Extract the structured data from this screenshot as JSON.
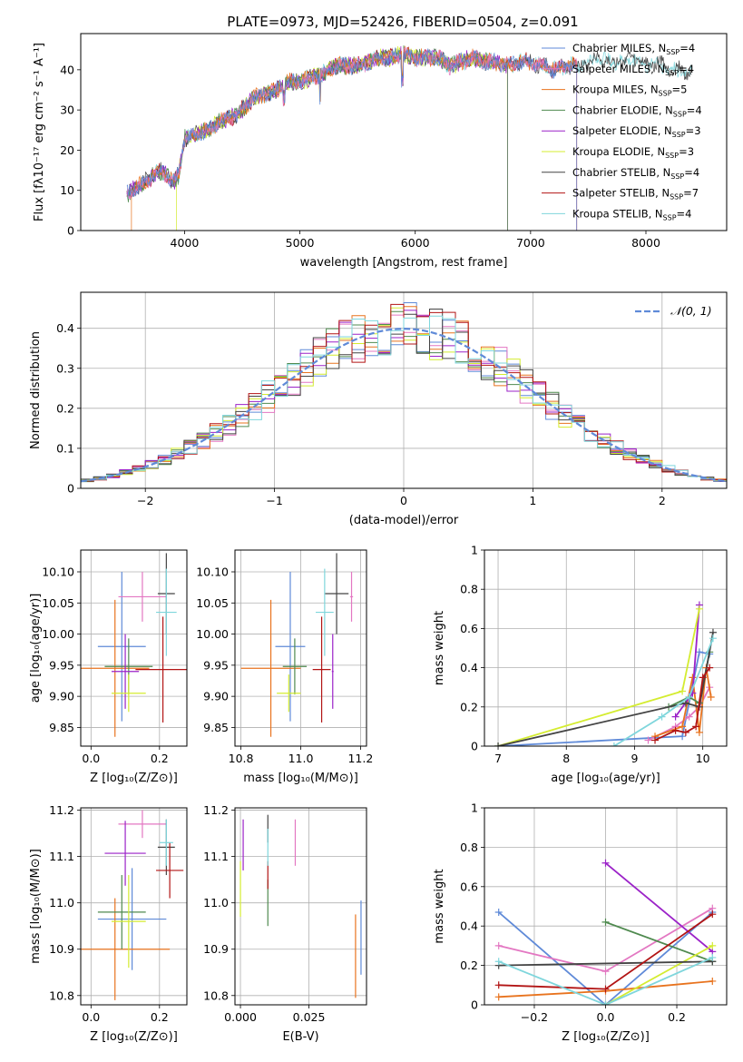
{
  "title": "PLATE=0973, MJD=52426, FIBERID=0504, z=0.091",
  "colors": {
    "Chabrier MILES": "#5f8ad8",
    "Salpeter MILES": "#e377c2",
    "Kroupa MILES": "#e8731e",
    "Chabrier ELODIE": "#4f8a4f",
    "Salpeter ELODIE": "#9b22c8",
    "Kroupa ELODIE": "#d4ec30",
    "Chabrier STELIB": "#444444",
    "Salpeter STELIB": "#b21414",
    "Kroupa STELIB": "#7fd6dc",
    "normal": "#5f8ad8"
  },
  "chart_data": [
    {
      "id": "spectrum",
      "type": "line",
      "title": "PLATE=0973, MJD=52426, FIBERID=0504, z=0.091",
      "xlabel": "wavelength [Angstrom, rest frame]",
      "ylabel": "Flux [fλ10⁻¹⁷ erg cm⁻² s⁻¹ A⁻¹]",
      "xlim": [
        3100,
        8700
      ],
      "ylim": [
        0,
        49
      ],
      "xticks": [
        4000,
        5000,
        6000,
        7000,
        8000
      ],
      "yticks": [
        0,
        10,
        20,
        30,
        40
      ],
      "grid": false,
      "legend_position": "right",
      "legend": [
        {
          "name": "Chabrier MILES",
          "label": "Chabrier MILES, N",
          "sub": "SSP",
          "suffix": "=4"
        },
        {
          "name": "Salpeter MILES",
          "label": "Salpeter MILES, N",
          "sub": "SSP",
          "suffix": "=4"
        },
        {
          "name": "Kroupa MILES",
          "label": "Kroupa MILES, N",
          "sub": "SSP",
          "suffix": "=5"
        },
        {
          "name": "Chabrier ELODIE",
          "label": "Chabrier ELODIE, N",
          "sub": "SSP",
          "suffix": "=4"
        },
        {
          "name": "Salpeter ELODIE",
          "label": "Salpeter ELODIE, N",
          "sub": "SSP",
          "suffix": "=3"
        },
        {
          "name": "Kroupa ELODIE",
          "label": "Kroupa ELODIE, N",
          "sub": "SSP",
          "suffix": "=3"
        },
        {
          "name": "Chabrier STELIB",
          "label": "Chabrier STELIB, N",
          "sub": "SSP",
          "suffix": "=4"
        },
        {
          "name": "Salpeter STELIB",
          "label": "Salpeter STELIB, N",
          "sub": "SSP",
          "suffix": "=7"
        },
        {
          "name": "Kroupa STELIB",
          "label": "Kroupa STELIB, N",
          "sub": "SSP",
          "suffix": "=4"
        }
      ],
      "continuum": {
        "x": [
          3500,
          3600,
          3700,
          3800,
          3900,
          3950,
          4000,
          4100,
          4200,
          4300,
          4400,
          4500,
          4600,
          4700,
          4800,
          4900,
          5000,
          5100,
          5200,
          5300,
          5400,
          5500,
          5600,
          5700,
          5800,
          5900,
          6000,
          6100,
          6200,
          6300,
          6400,
          6500,
          6600,
          6700,
          6800,
          6900,
          7000,
          7100,
          7200,
          7300,
          7400,
          7500,
          7600,
          7700,
          7800,
          7900,
          8000,
          8100,
          8200,
          8300,
          8400
        ],
        "y": [
          9,
          11,
          13,
          15,
          12,
          14,
          23,
          24,
          25,
          27,
          28,
          30,
          33,
          34,
          35,
          37,
          37,
          38,
          39,
          41,
          41,
          41,
          42,
          43,
          43,
          44,
          43,
          43,
          43,
          41,
          42,
          43,
          42,
          42,
          41,
          42,
          42,
          41,
          40,
          41,
          41,
          42,
          43,
          42,
          42,
          43,
          41,
          42,
          40,
          40,
          39
        ]
      },
      "series_ranges": [
        {
          "name": "Chabrier MILES",
          "x": [
            3500,
            7400
          ]
        },
        {
          "name": "Salpeter MILES",
          "x": [
            3500,
            7400
          ]
        },
        {
          "name": "Kroupa MILES",
          "x": [
            3540,
            7400
          ]
        },
        {
          "name": "Chabrier ELODIE",
          "x": [
            3500,
            6800
          ]
        },
        {
          "name": "Salpeter ELODIE",
          "x": [
            3500,
            6800
          ]
        },
        {
          "name": "Kroupa ELODIE",
          "x": [
            3930,
            6800
          ]
        },
        {
          "name": "Chabrier STELIB",
          "x": [
            3500,
            8400
          ]
        },
        {
          "name": "Salpeter STELIB",
          "x": [
            3500,
            7400
          ]
        },
        {
          "name": "Kroupa STELIB",
          "x": [
            3500,
            8400
          ]
        }
      ]
    },
    {
      "id": "residuals",
      "type": "line",
      "xlabel": "(data-model)/error",
      "ylabel": "Normed distribution",
      "xlim": [
        -2.5,
        2.5
      ],
      "ylim": [
        0,
        0.49
      ],
      "xticks": [
        -2,
        -1,
        0,
        1,
        2
      ],
      "yticks": [
        0.0,
        0.1,
        0.2,
        0.3,
        0.4
      ],
      "grid": true,
      "legend_position": "top-right",
      "normal_label": "𝒩(0, 1)",
      "bin_width": 0.1
    },
    {
      "id": "age_vs_Z",
      "type": "scatter",
      "xlabel": "Z [log₁₀(Z/Z⊙)]",
      "ylabel": "age  [log₁₀(age/yr)]",
      "xlim": [
        -0.03,
        0.28
      ],
      "ylim": [
        9.82,
        10.135
      ],
      "xticks": [
        0.0,
        0.2
      ],
      "xticklabels": [
        "0.0",
        "0.2"
      ],
      "yticks": [
        9.85,
        9.9,
        9.95,
        10.0,
        10.05,
        10.1
      ],
      "yticklabels": [
        "9.85",
        "9.90",
        "9.95",
        "10.00",
        "10.05",
        "10.10"
      ],
      "grid": true,
      "points": [
        {
          "name": "Chabrier MILES",
          "x": 0.09,
          "xerr": 0.07,
          "y": 9.98,
          "yerr": 0.12
        },
        {
          "name": "Salpeter MILES",
          "x": 0.15,
          "xerr": 0.07,
          "y": 10.06,
          "yerr": 0.04
        },
        {
          "name": "Kroupa MILES",
          "x": 0.07,
          "xerr": 0.1,
          "y": 9.945,
          "yerr": 0.11
        },
        {
          "name": "Chabrier ELODIE",
          "x": 0.11,
          "xerr": 0.07,
          "y": 9.948,
          "yerr": 0.045
        },
        {
          "name": "Salpeter ELODIE",
          "x": 0.1,
          "xerr": 0.04,
          "y": 9.94,
          "yerr": 0.06
        },
        {
          "name": "Kroupa ELODIE",
          "x": 0.11,
          "xerr": 0.05,
          "y": 9.905,
          "yerr": 0.03
        },
        {
          "name": "Chabrier STELIB",
          "x": 0.22,
          "xerr": 0.025,
          "y": 10.065,
          "yerr": 0.065
        },
        {
          "name": "Salpeter STELIB",
          "x": 0.21,
          "xerr": 0.08,
          "y": 9.943,
          "yerr": 0.085
        },
        {
          "name": "Kroupa STELIB",
          "x": 0.22,
          "xerr": 0.03,
          "y": 10.035,
          "yerr": 0.07
        }
      ]
    },
    {
      "id": "age_vs_mass",
      "type": "scatter",
      "xlabel": "mass [log₁₀(M/M⊙)]",
      "ylabel": "",
      "xlim": [
        10.78,
        11.22
      ],
      "ylim": [
        9.82,
        10.135
      ],
      "xticks": [
        10.8,
        11.0,
        11.2
      ],
      "xticklabels": [
        "10.8",
        "11.0",
        "11.2"
      ],
      "yticks": [
        9.85,
        9.9,
        9.95,
        10.0,
        10.05,
        10.1
      ],
      "yticklabels": [
        "9.85",
        "9.90",
        "9.95",
        "10.00",
        "10.05",
        "10.10"
      ],
      "grid": true,
      "points": [
        {
          "name": "Chabrier MILES",
          "x": 10.965,
          "xerr": 0.05,
          "y": 9.98,
          "yerr": 0.12
        },
        {
          "name": "Salpeter MILES",
          "x": 11.17,
          "xerr": 0.005,
          "y": 10.06,
          "yerr": 0.04
        },
        {
          "name": "Kroupa MILES",
          "x": 10.9,
          "xerr": 0.1,
          "y": 9.945,
          "yerr": 0.11
        },
        {
          "name": "Chabrier ELODIE",
          "x": 10.98,
          "xerr": 0.04,
          "y": 9.948,
          "yerr": 0.045
        },
        {
          "name": "Salpeter ELODIE",
          "x": 11.107,
          "xerr": 0.003,
          "y": 9.94,
          "yerr": 0.06
        },
        {
          "name": "Kroupa ELODIE",
          "x": 10.96,
          "xerr": 0.04,
          "y": 9.905,
          "yerr": 0.03
        },
        {
          "name": "Chabrier STELIB",
          "x": 11.12,
          "xerr": 0.04,
          "y": 10.065,
          "yerr": 0.065
        },
        {
          "name": "Salpeter STELIB",
          "x": 11.07,
          "xerr": 0.03,
          "y": 9.943,
          "yerr": 0.085
        },
        {
          "name": "Kroupa STELIB",
          "x": 11.08,
          "xerr": 0.03,
          "y": 10.035,
          "yerr": 0.07
        }
      ]
    },
    {
      "id": "mass_weight_vs_age",
      "type": "line",
      "xlabel": "age  [log₁₀(age/yr)]",
      "ylabel": "mass weight",
      "xlim": [
        6.8,
        10.35
      ],
      "ylim": [
        0,
        1.0
      ],
      "xticks": [
        7,
        8,
        9,
        10
      ],
      "yticks": [
        0.0,
        0.2,
        0.4,
        0.6,
        0.8,
        1.0
      ],
      "grid": true,
      "series": [
        {
          "name": "Chabrier MILES",
          "x": [
            7.0,
            9.7,
            9.95,
            10.1
          ],
          "y": [
            0.0,
            0.05,
            0.48,
            0.47
          ]
        },
        {
          "name": "Salpeter MILES",
          "x": [
            9.2,
            9.6,
            9.8,
            9.95,
            10.1
          ],
          "y": [
            0.03,
            0.1,
            0.15,
            0.2,
            0.3
          ]
        },
        {
          "name": "Kroupa MILES",
          "x": [
            9.3,
            9.7,
            9.85,
            9.95,
            10.05,
            10.12
          ],
          "y": [
            0.05,
            0.1,
            0.35,
            0.07,
            0.4,
            0.25
          ]
        },
        {
          "name": "Chabrier ELODIE",
          "x": [
            9.5,
            9.8,
            9.95,
            10.1
          ],
          "y": [
            0.2,
            0.25,
            0.22,
            0.48
          ]
        },
        {
          "name": "Salpeter ELODIE",
          "x": [
            9.6,
            9.85,
            9.95
          ],
          "y": [
            0.15,
            0.27,
            0.72
          ]
        },
        {
          "name": "Kroupa ELODIE",
          "x": [
            7.0,
            9.7,
            9.95
          ],
          "y": [
            0.0,
            0.28,
            0.7
          ]
        },
        {
          "name": "Chabrier STELIB",
          "x": [
            7.0,
            9.75,
            9.95,
            10.15
          ],
          "y": [
            0.0,
            0.22,
            0.2,
            0.58
          ]
        },
        {
          "name": "Salpeter STELIB",
          "x": [
            9.3,
            9.6,
            9.75,
            9.9,
            10.0,
            10.1
          ],
          "y": [
            0.03,
            0.08,
            0.07,
            0.1,
            0.35,
            0.4
          ]
        },
        {
          "name": "Kroupa STELIB",
          "x": [
            8.7,
            9.4,
            9.8,
            10.15
          ],
          "y": [
            0.0,
            0.15,
            0.25,
            0.55
          ]
        }
      ]
    },
    {
      "id": "mass_vs_Z",
      "type": "scatter",
      "xlabel": "Z [log₁₀(Z/Z⊙)]",
      "ylabel": "mass [log₁₀(M/M⊙)]",
      "xlim": [
        -0.03,
        0.28
      ],
      "ylim": [
        10.78,
        11.205
      ],
      "xticks": [
        0.0,
        0.2
      ],
      "xticklabels": [
        "0.0",
        "0.2"
      ],
      "yticks": [
        10.8,
        10.9,
        11.0,
        11.1,
        11.2
      ],
      "yticklabels": [
        "10.8",
        "10.9",
        "11.0",
        "11.1",
        "11.2"
      ],
      "grid": true,
      "points": [
        {
          "name": "Chabrier MILES",
          "x": 0.12,
          "xerr": 0.1,
          "y": 10.965,
          "yerr": 0.11
        },
        {
          "name": "Salpeter MILES",
          "x": 0.15,
          "xerr": 0.07,
          "y": 11.17,
          "yerr": 0.03
        },
        {
          "name": "Kroupa MILES",
          "x": 0.07,
          "xerr": 0.16,
          "y": 10.9,
          "yerr": 0.11
        },
        {
          "name": "Chabrier ELODIE",
          "x": 0.09,
          "xerr": 0.07,
          "y": 10.98,
          "yerr": 0.08
        },
        {
          "name": "Salpeter ELODIE",
          "x": 0.1,
          "xerr": 0.06,
          "y": 11.107,
          "yerr": 0.07
        },
        {
          "name": "Kroupa ELODIE",
          "x": 0.11,
          "xerr": 0.05,
          "y": 10.96,
          "yerr": 0.1
        },
        {
          "name": "Chabrier STELIB",
          "x": 0.22,
          "xerr": 0.025,
          "y": 11.12,
          "yerr": 0.06
        },
        {
          "name": "Salpeter STELIB",
          "x": 0.23,
          "xerr": 0.04,
          "y": 11.07,
          "yerr": 0.06
        },
        {
          "name": "Kroupa STELIB",
          "x": 0.22,
          "xerr": 0.02,
          "y": 11.13,
          "yerr": 0.05
        }
      ]
    },
    {
      "id": "mass_vs_ebv",
      "type": "scatter",
      "xlabel": "E(B-V)",
      "ylabel": "",
      "xlim": [
        -0.002,
        0.046
      ],
      "ylim": [
        10.78,
        11.205
      ],
      "xticks": [
        0.0,
        0.025
      ],
      "xticklabels": [
        "0.000",
        "0.025"
      ],
      "yticks": [
        10.8,
        10.9,
        11.0,
        11.1,
        11.2
      ],
      "yticklabels": [
        "10.8",
        "10.9",
        "11.0",
        "11.1",
        "11.2"
      ],
      "grid": true,
      "points": [
        {
          "name": "Chabrier MILES",
          "x": 0.044,
          "xerr": 0,
          "y": 10.925,
          "yerr": 0.08
        },
        {
          "name": "Salpeter MILES",
          "x": 0.02,
          "xerr": 0,
          "y": 11.13,
          "yerr": 0.05
        },
        {
          "name": "Kroupa MILES",
          "x": 0.042,
          "xerr": 0,
          "y": 10.885,
          "yerr": 0.09
        },
        {
          "name": "Chabrier ELODIE",
          "x": 0.01,
          "xerr": 0,
          "y": 11.0,
          "yerr": 0.05
        },
        {
          "name": "Salpeter ELODIE",
          "x": 0.001,
          "xerr": 0,
          "y": 11.125,
          "yerr": 0.055
        },
        {
          "name": "Kroupa ELODIE",
          "x": 0.0,
          "xerr": 0,
          "y": 11.03,
          "yerr": 0.06
        },
        {
          "name": "Chabrier STELIB",
          "x": 0.01,
          "xerr": 0,
          "y": 11.16,
          "yerr": 0.03
        },
        {
          "name": "Salpeter STELIB",
          "x": 0.01,
          "xerr": 0,
          "y": 11.06,
          "yerr": 0.03
        },
        {
          "name": "Kroupa STELIB",
          "x": 0.01,
          "xerr": 0,
          "y": 11.12,
          "yerr": 0.04
        }
      ]
    },
    {
      "id": "mass_weight_vs_Z",
      "type": "line",
      "xlabel": "Z [log₁₀(Z/Z⊙)]",
      "ylabel": "mass weight",
      "xlim": [
        -0.34,
        0.34
      ],
      "ylim": [
        0,
        1.0
      ],
      "xticks": [
        -0.2,
        0.0,
        0.2
      ],
      "xticklabels": [
        "−0.2",
        "0.0",
        "0.2"
      ],
      "yticks": [
        0.0,
        0.2,
        0.4,
        0.6,
        0.8,
        1.0
      ],
      "grid": true,
      "series": [
        {
          "name": "Chabrier MILES",
          "x": [
            -0.3,
            0.0,
            0.3
          ],
          "y": [
            0.47,
            0.0,
            0.47
          ]
        },
        {
          "name": "Salpeter MILES",
          "x": [
            -0.3,
            0.0,
            0.3
          ],
          "y": [
            0.3,
            0.17,
            0.49
          ]
        },
        {
          "name": "Kroupa MILES",
          "x": [
            -0.3,
            0.0,
            0.3
          ],
          "y": [
            0.04,
            0.07,
            0.12
          ]
        },
        {
          "name": "Chabrier ELODIE",
          "x": [
            0.0,
            0.3
          ],
          "y": [
            0.42,
            0.22
          ]
        },
        {
          "name": "Salpeter ELODIE",
          "x": [
            0.0,
            0.3
          ],
          "y": [
            0.72,
            0.27
          ]
        },
        {
          "name": "Kroupa ELODIE",
          "x": [
            0.0,
            0.3
          ],
          "y": [
            0.0,
            0.3
          ]
        },
        {
          "name": "Chabrier STELIB",
          "x": [
            -0.3,
            0.3
          ],
          "y": [
            0.2,
            0.22
          ]
        },
        {
          "name": "Salpeter STELIB",
          "x": [
            -0.3,
            0.0,
            0.3
          ],
          "y": [
            0.1,
            0.08,
            0.46
          ]
        },
        {
          "name": "Kroupa STELIB",
          "x": [
            -0.3,
            0.0,
            0.3
          ],
          "y": [
            0.22,
            0.0,
            0.24
          ]
        }
      ]
    }
  ]
}
